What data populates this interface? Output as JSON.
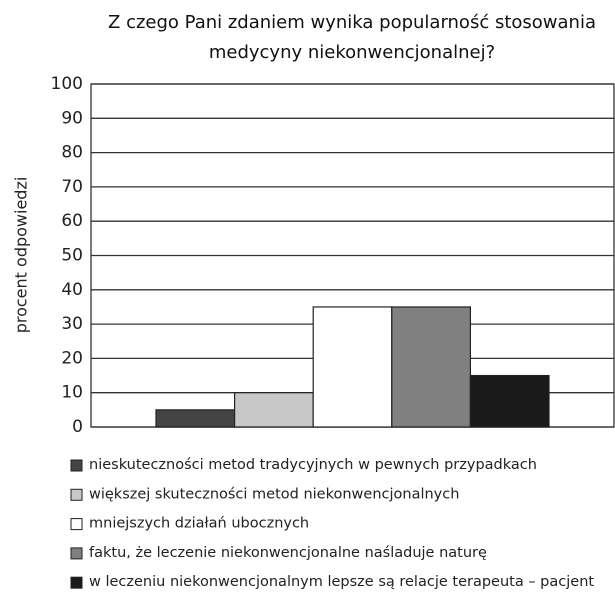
{
  "chart_data": {
    "type": "bar",
    "title": "Z czego Pani zdaniem wynika popularność stosowania\nmedycyny niekonwencjonalnej?",
    "y_label": "procent odpowiedzi",
    "categories": [
      null
    ],
    "series": [
      {
        "name": "nieskuteczności metod tradycyjnych w pewnych przypadkach",
        "color": "#444444",
        "values": [
          5
        ]
      },
      {
        "name": "większej skuteczności metod niekonwencjonalnych",
        "color": "#c8c8c8",
        "values": [
          10
        ]
      },
      {
        "name": "mniejszych działań ubocznych",
        "color": "#ffffff",
        "values": [
          35
        ]
      },
      {
        "name": "faktu, że leczenie niekonwencjonalne naśladuje naturę",
        "color": "#808080",
        "values": [
          35
        ]
      },
      {
        "name": "w leczeniu niekonwencjonalnym lepsze są relacje terapeuta – pacjent",
        "color": "#1a1a1a",
        "values": [
          15
        ]
      }
    ],
    "ylim": [
      0,
      100
    ],
    "yticks": [
      0,
      10,
      20,
      30,
      40,
      50,
      60,
      70,
      80,
      90,
      100
    ],
    "grid": true,
    "legend": "bottom"
  }
}
